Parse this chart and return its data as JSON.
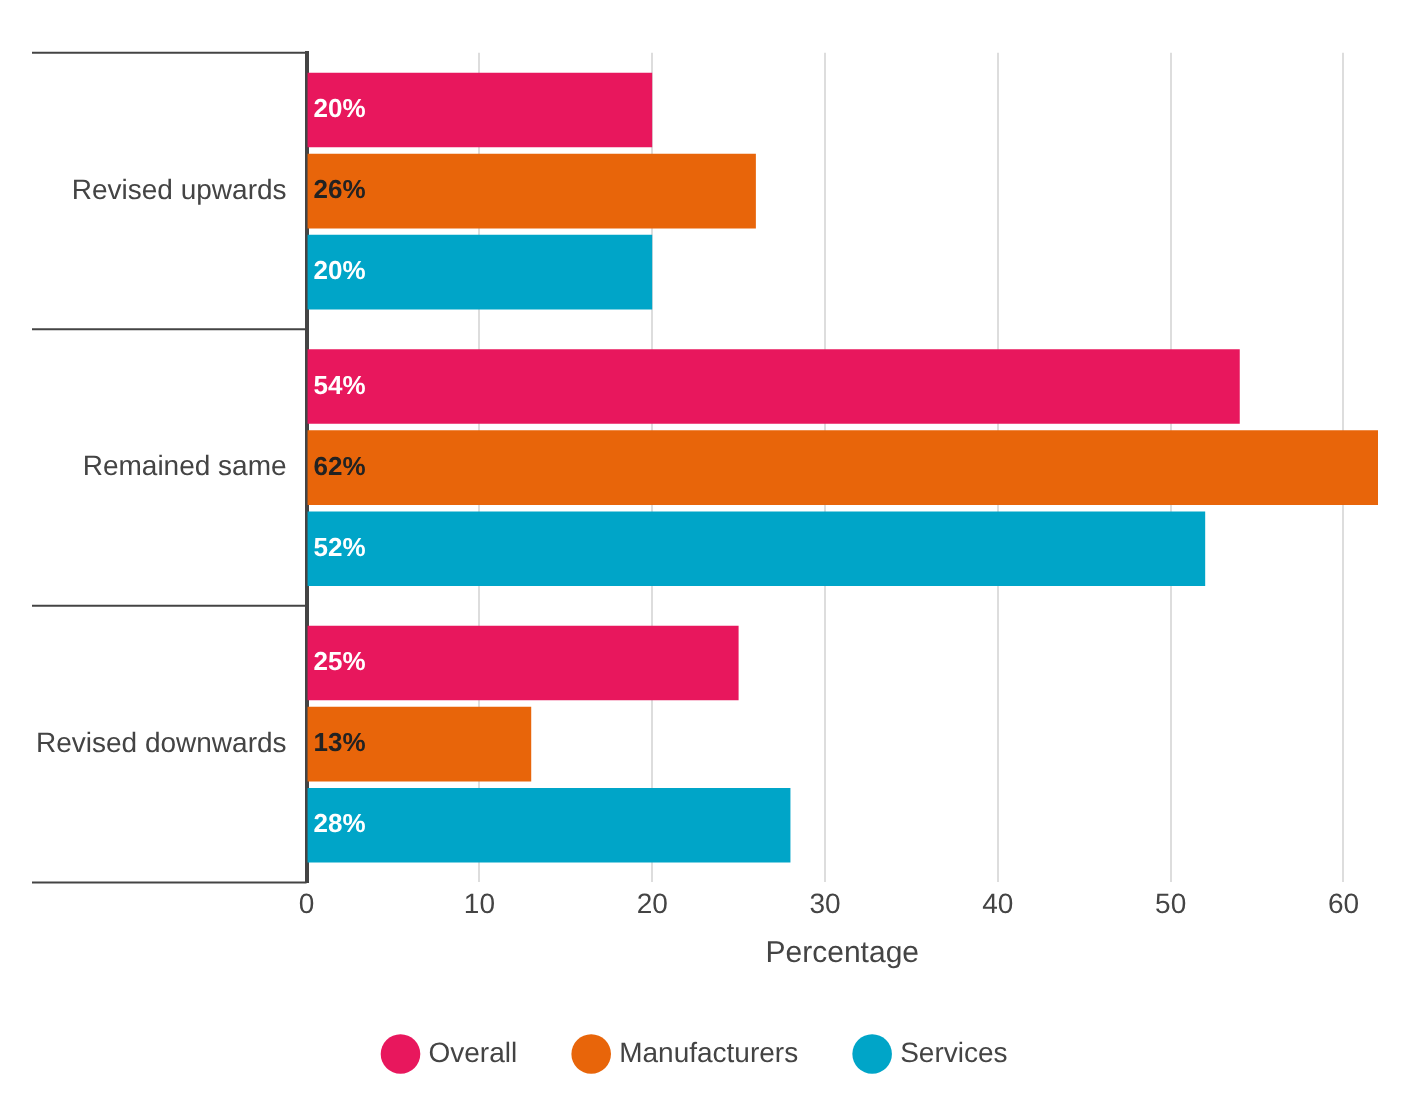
{
  "chart_data": {
    "type": "bar",
    "orientation": "horizontal",
    "xlabel": "Percentage",
    "categories": [
      "Revised upwards",
      "Remained same",
      "Revised downwards"
    ],
    "series": [
      {
        "name": "Overall",
        "color": "#e8175d",
        "values": [
          20,
          54,
          25
        ],
        "value_labels": [
          "20%",
          "54%",
          "25%"
        ]
      },
      {
        "name": "Manufacturers",
        "color": "#e8650a",
        "values": [
          26,
          62,
          13
        ],
        "value_labels": [
          "26%",
          "62%",
          "13%"
        ]
      },
      {
        "name": "Services",
        "color": "#00a5c8",
        "values": [
          20,
          52,
          28
        ],
        "value_labels": [
          "20%",
          "52%",
          "28%"
        ]
      }
    ],
    "xlim": [
      0,
      62
    ],
    "xticks": [
      0,
      10,
      20,
      30,
      40,
      50,
      60
    ],
    "grid": "x",
    "legend": "bottom"
  }
}
